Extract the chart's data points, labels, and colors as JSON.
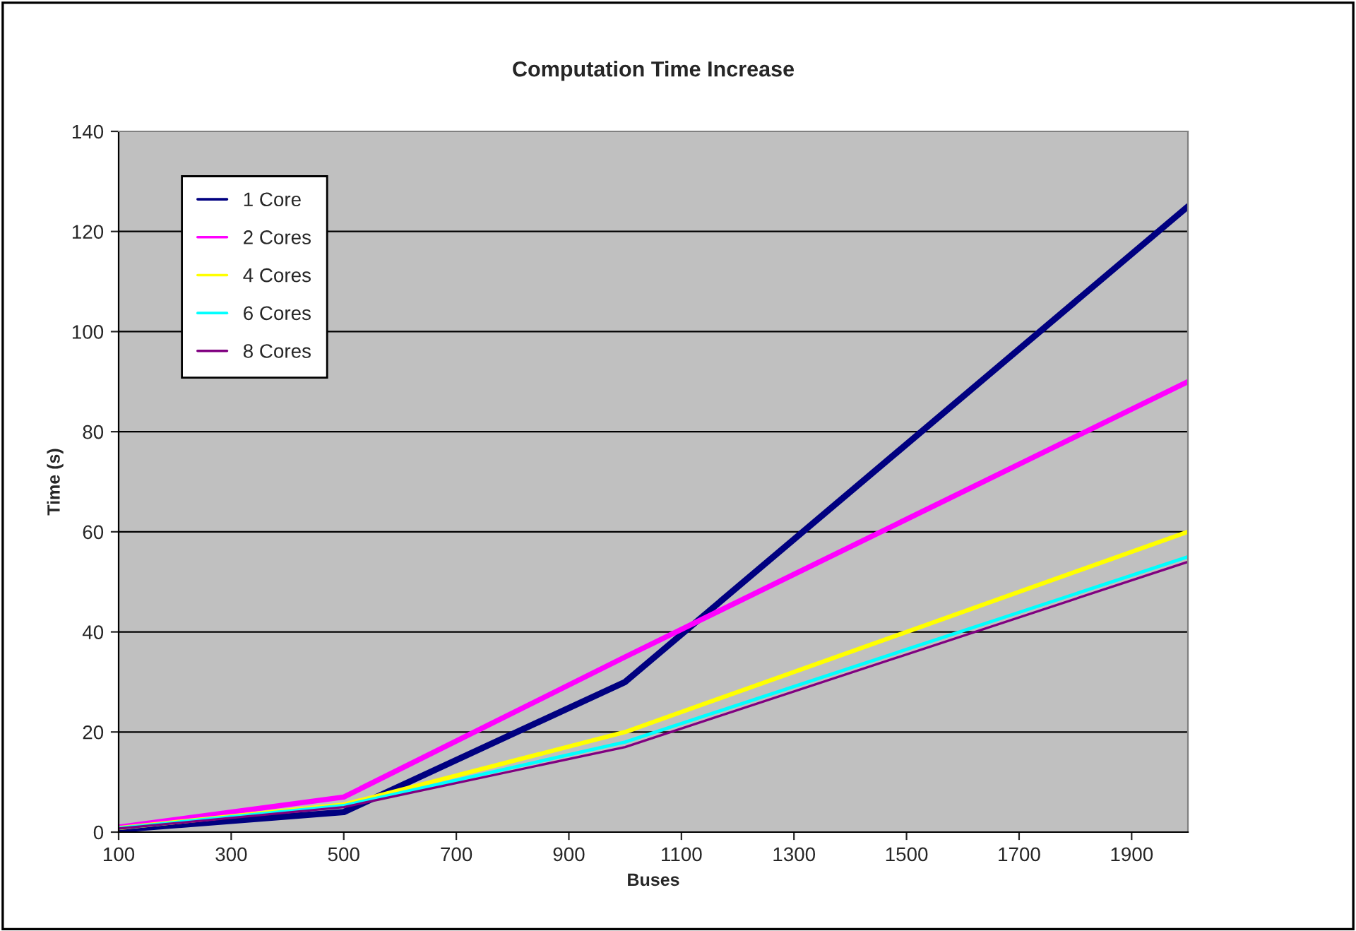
{
  "chart_data": {
    "type": "line",
    "title": "Computation Time Increase",
    "xlabel": "Buses",
    "ylabel": "Time (s)",
    "x": [
      100,
      500,
      1000,
      2000
    ],
    "series": [
      {
        "name": "1 Core",
        "color": "#000080",
        "values": [
          0.5,
          4,
          30,
          125
        ]
      },
      {
        "name": "2 Cores",
        "color": "#ff00ff",
        "values": [
          1,
          7,
          35,
          90
        ]
      },
      {
        "name": "4 Cores",
        "color": "#ffff00",
        "values": [
          0.8,
          5.5,
          20,
          60
        ]
      },
      {
        "name": "6 Cores",
        "color": "#00ffff",
        "values": [
          0.8,
          5.3,
          18,
          55
        ]
      },
      {
        "name": "8 Cores",
        "color": "#800080",
        "values": [
          0.7,
          5,
          17,
          54
        ]
      }
    ],
    "xlim": [
      100,
      2000
    ],
    "xticks": [
      100,
      300,
      500,
      700,
      900,
      1100,
      1300,
      1500,
      1700,
      1900
    ],
    "ylim": [
      0,
      140
    ],
    "yticks": [
      0,
      20,
      40,
      60,
      80,
      100,
      120,
      140
    ],
    "grid": "y",
    "legend": "top left",
    "marker": "none",
    "line_style": "solid"
  }
}
